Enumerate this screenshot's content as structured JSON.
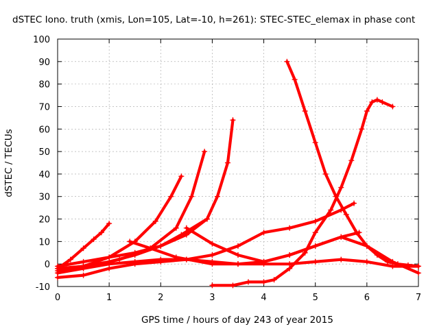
{
  "chart_data": {
    "type": "scatter",
    "title": "dSTEC Iono. truth (xmis, Lon=105, Lat=-10, h=261): STEC-STEC_elemax in phase cont",
    "xlabel": "GPS time / hours of day 243 of year 2015",
    "ylabel": "dSTEC  / TECUs",
    "xlim": [
      0,
      7
    ],
    "ylim": [
      -10,
      100
    ],
    "xticks": [
      "0",
      "1",
      "2",
      "3",
      "4",
      "5",
      "6",
      "7"
    ],
    "yticks": [
      "-10",
      "0",
      "10",
      "20",
      "30",
      "40",
      "50",
      "60",
      "70",
      "80",
      "90",
      "100"
    ],
    "grid": true,
    "marker": "+",
    "color": "#ff0000",
    "series": [
      {
        "x": [
          0,
          0.25,
          0.5,
          0.7,
          0.85,
          1.0
        ],
        "y": [
          -2,
          2,
          7,
          11,
          14,
          18
        ]
      },
      {
        "x": [
          0,
          0.5,
          1.0,
          1.5,
          1.9,
          2.2,
          2.4
        ],
        "y": [
          -3,
          -1,
          3,
          10,
          19,
          30,
          39
        ]
      },
      {
        "x": [
          0,
          0.6,
          1.2,
          1.8,
          2.3,
          2.6,
          2.85
        ],
        "y": [
          -4,
          -1,
          2,
          7,
          16,
          30,
          50
        ]
      },
      {
        "x": [
          0,
          0.5,
          1.0,
          1.5,
          2.0,
          2.4,
          2.9
        ],
        "y": [
          -1,
          1,
          3,
          5,
          8,
          13,
          20
        ]
      },
      {
        "x": [
          0,
          0.5,
          1.0,
          1.5,
          2.0,
          2.5,
          2.9,
          3.1,
          3.3,
          3.4
        ],
        "y": [
          -2,
          -1,
          1,
          4,
          8,
          13,
          20,
          30,
          45,
          64
        ]
      },
      {
        "x": [
          0,
          0.5,
          1.0,
          1.5,
          2.0,
          2.5,
          3.0,
          3.5,
          4.0,
          4.5,
          5.0,
          5.5,
          5.75
        ],
        "y": [
          -6,
          -5,
          -2,
          0,
          1,
          2,
          4,
          8,
          14,
          16,
          19,
          24,
          27
        ]
      },
      {
        "x": [
          0,
          0.5,
          1.0,
          1.5,
          2.0,
          2.5,
          3.0,
          3.5,
          4.0,
          4.5,
          5.0,
          5.5,
          5.85
        ],
        "y": [
          -4,
          -2,
          0,
          1,
          2,
          2,
          1,
          0,
          1,
          4,
          8,
          12,
          14
        ]
      },
      {
        "x": [
          1.4,
          1.8,
          2.3,
          3.0,
          3.5,
          4.0,
          4.5,
          5.0,
          5.5,
          6.0,
          6.5,
          7.0
        ],
        "y": [
          10,
          7,
          3,
          0,
          0,
          0,
          0,
          1,
          2,
          1,
          -1,
          -1
        ]
      },
      {
        "x": [
          2.5,
          3.0,
          3.5,
          4.0,
          4.5,
          5.0,
          5.5,
          6.0,
          6.5,
          7.0
        ],
        "y": [
          16,
          9,
          4,
          1,
          4,
          8,
          12,
          8,
          1,
          -4
        ]
      },
      {
        "x": [
          3.0,
          3.4,
          3.7,
          4.0,
          4.2,
          4.5,
          4.8,
          5.0,
          5.3,
          5.5,
          5.7,
          5.9,
          6.0,
          6.1,
          6.2,
          6.3,
          6.5
        ],
        "y": [
          -9.5,
          -9.5,
          -8,
          -8,
          -7,
          -2,
          5,
          14,
          24,
          34,
          46,
          60,
          68,
          72,
          73,
          72,
          70
        ]
      },
      {
        "x": [
          4.45,
          4.6,
          4.8,
          5.0,
          5.2,
          5.4,
          5.6,
          5.8,
          6.0,
          6.2,
          6.4,
          6.6,
          6.8,
          7.0
        ],
        "y": [
          90,
          82,
          68,
          54,
          40,
          30,
          22,
          14,
          8,
          4,
          1,
          0,
          -0.5,
          -1
        ]
      }
    ]
  }
}
